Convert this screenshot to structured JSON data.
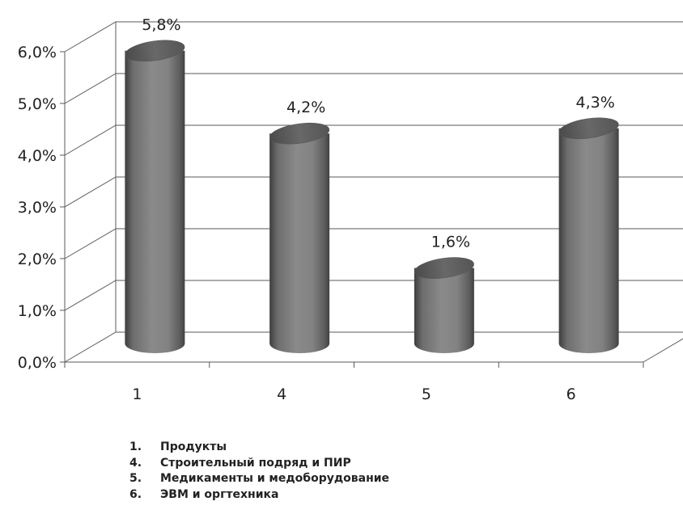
{
  "chart_data": {
    "type": "bar",
    "style": "3d-cylinder",
    "categories": [
      "1",
      "4",
      "5",
      "6"
    ],
    "values": [
      5.8,
      4.2,
      1.6,
      4.3
    ],
    "data_labels": [
      "5,8%",
      "4,2%",
      "1,6%",
      "4,3%"
    ],
    "yticks": [
      "0,0%",
      "1,0%",
      "2,0%",
      "3,0%",
      "4,0%",
      "5,0%",
      "6,0%"
    ],
    "ylim": [
      0,
      6
    ],
    "grid": true,
    "bar_color": "#7a7a7a",
    "legend": [
      {
        "num": "1.",
        "label": "Продукты"
      },
      {
        "num": "4.",
        "label": "Строительный подряд и ПИР"
      },
      {
        "num": "5.",
        "label": "Медикаменты и медоборудование"
      },
      {
        "num": "6.",
        "label": "ЭВМ и оргтехника"
      }
    ]
  }
}
